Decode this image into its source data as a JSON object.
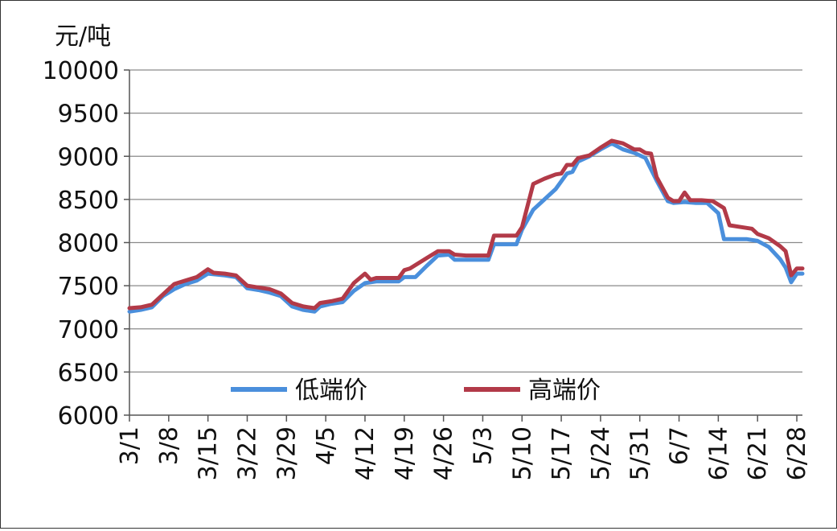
{
  "chart_data": {
    "type": "line",
    "ylabel": "元/吨",
    "ylim": [
      6000,
      10000
    ],
    "yticks": [
      10000,
      9500,
      9000,
      8500,
      8000,
      7500,
      7000,
      6500,
      6000
    ],
    "xticks": [
      "3/1",
      "3/8",
      "3/15",
      "3/22",
      "3/29",
      "4/5",
      "4/12",
      "4/19",
      "4/26",
      "5/3",
      "5/10",
      "5/17",
      "5/24",
      "5/31",
      "6/7",
      "6/14",
      "6/21",
      "6/28"
    ],
    "x_tick_days": [
      0,
      7,
      14,
      21,
      28,
      35,
      42,
      49,
      56,
      63,
      70,
      77,
      84,
      91,
      98,
      105,
      112,
      119
    ],
    "x_range_days": [
      0,
      120
    ],
    "grid": true,
    "legend_position": "inside-bottom",
    "series": [
      {
        "name": "低端价",
        "color": "#4a8fdc",
        "points": [
          [
            0,
            7200
          ],
          [
            2,
            7220
          ],
          [
            4,
            7250
          ],
          [
            6,
            7380
          ],
          [
            8,
            7460
          ],
          [
            10,
            7520
          ],
          [
            12,
            7560
          ],
          [
            14,
            7640
          ],
          [
            17,
            7620
          ],
          [
            19,
            7600
          ],
          [
            21,
            7470
          ],
          [
            23,
            7450
          ],
          [
            25,
            7420
          ],
          [
            27,
            7380
          ],
          [
            29,
            7260
          ],
          [
            31,
            7220
          ],
          [
            33,
            7200
          ],
          [
            34,
            7260
          ],
          [
            36,
            7290
          ],
          [
            38,
            7310
          ],
          [
            40,
            7440
          ],
          [
            42,
            7530
          ],
          [
            44,
            7550
          ],
          [
            46,
            7550
          ],
          [
            48,
            7550
          ],
          [
            49,
            7600
          ],
          [
            51,
            7600
          ],
          [
            53,
            7730
          ],
          [
            55,
            7850
          ],
          [
            57,
            7860
          ],
          [
            58,
            7800
          ],
          [
            60,
            7800
          ],
          [
            62,
            7800
          ],
          [
            64,
            7800
          ],
          [
            65,
            7980
          ],
          [
            67,
            7980
          ],
          [
            69,
            7980
          ],
          [
            70,
            8150
          ],
          [
            72,
            8380
          ],
          [
            74,
            8500
          ],
          [
            76,
            8620
          ],
          [
            78,
            8800
          ],
          [
            79,
            8820
          ],
          [
            80,
            8940
          ],
          [
            82,
            9000
          ],
          [
            84,
            9080
          ],
          [
            86,
            9150
          ],
          [
            88,
            9080
          ],
          [
            90,
            9040
          ],
          [
            92,
            8980
          ],
          [
            94,
            8720
          ],
          [
            96,
            8480
          ],
          [
            97,
            8460
          ],
          [
            99,
            8470
          ],
          [
            101,
            8460
          ],
          [
            103,
            8460
          ],
          [
            105,
            8340
          ],
          [
            106,
            8040
          ],
          [
            108,
            8040
          ],
          [
            110,
            8040
          ],
          [
            112,
            8020
          ],
          [
            114,
            7950
          ],
          [
            116,
            7810
          ],
          [
            117,
            7710
          ],
          [
            118,
            7540
          ],
          [
            119,
            7640
          ],
          [
            120,
            7640
          ]
        ]
      },
      {
        "name": "高端价",
        "color": "#b23a48",
        "points": [
          [
            0,
            7240
          ],
          [
            2,
            7250
          ],
          [
            4,
            7280
          ],
          [
            6,
            7400
          ],
          [
            8,
            7520
          ],
          [
            10,
            7560
          ],
          [
            12,
            7600
          ],
          [
            14,
            7690
          ],
          [
            15,
            7650
          ],
          [
            17,
            7640
          ],
          [
            19,
            7620
          ],
          [
            21,
            7500
          ],
          [
            23,
            7480
          ],
          [
            25,
            7460
          ],
          [
            27,
            7410
          ],
          [
            29,
            7300
          ],
          [
            31,
            7260
          ],
          [
            33,
            7240
          ],
          [
            34,
            7300
          ],
          [
            36,
            7320
          ],
          [
            38,
            7350
          ],
          [
            40,
            7530
          ],
          [
            42,
            7640
          ],
          [
            43,
            7570
          ],
          [
            44,
            7590
          ],
          [
            46,
            7590
          ],
          [
            48,
            7590
          ],
          [
            49,
            7680
          ],
          [
            50,
            7700
          ],
          [
            53,
            7820
          ],
          [
            55,
            7900
          ],
          [
            57,
            7900
          ],
          [
            58,
            7860
          ],
          [
            60,
            7850
          ],
          [
            62,
            7850
          ],
          [
            64,
            7850
          ],
          [
            65,
            8080
          ],
          [
            67,
            8080
          ],
          [
            69,
            8080
          ],
          [
            70,
            8180
          ],
          [
            72,
            8680
          ],
          [
            74,
            8740
          ],
          [
            76,
            8790
          ],
          [
            77,
            8800
          ],
          [
            78,
            8900
          ],
          [
            79,
            8900
          ],
          [
            80,
            8980
          ],
          [
            82,
            9010
          ],
          [
            84,
            9100
          ],
          [
            86,
            9180
          ],
          [
            88,
            9150
          ],
          [
            90,
            9080
          ],
          [
            91,
            9080
          ],
          [
            92,
            9040
          ],
          [
            93,
            9030
          ],
          [
            94,
            8760
          ],
          [
            96,
            8520
          ],
          [
            97,
            8480
          ],
          [
            98,
            8480
          ],
          [
            99,
            8580
          ],
          [
            100,
            8490
          ],
          [
            102,
            8490
          ],
          [
            104,
            8480
          ],
          [
            106,
            8400
          ],
          [
            107,
            8200
          ],
          [
            109,
            8180
          ],
          [
            111,
            8160
          ],
          [
            112,
            8100
          ],
          [
            114,
            8050
          ],
          [
            116,
            7960
          ],
          [
            117,
            7900
          ],
          [
            118,
            7620
          ],
          [
            119,
            7700
          ],
          [
            120,
            7700
          ]
        ]
      }
    ]
  }
}
